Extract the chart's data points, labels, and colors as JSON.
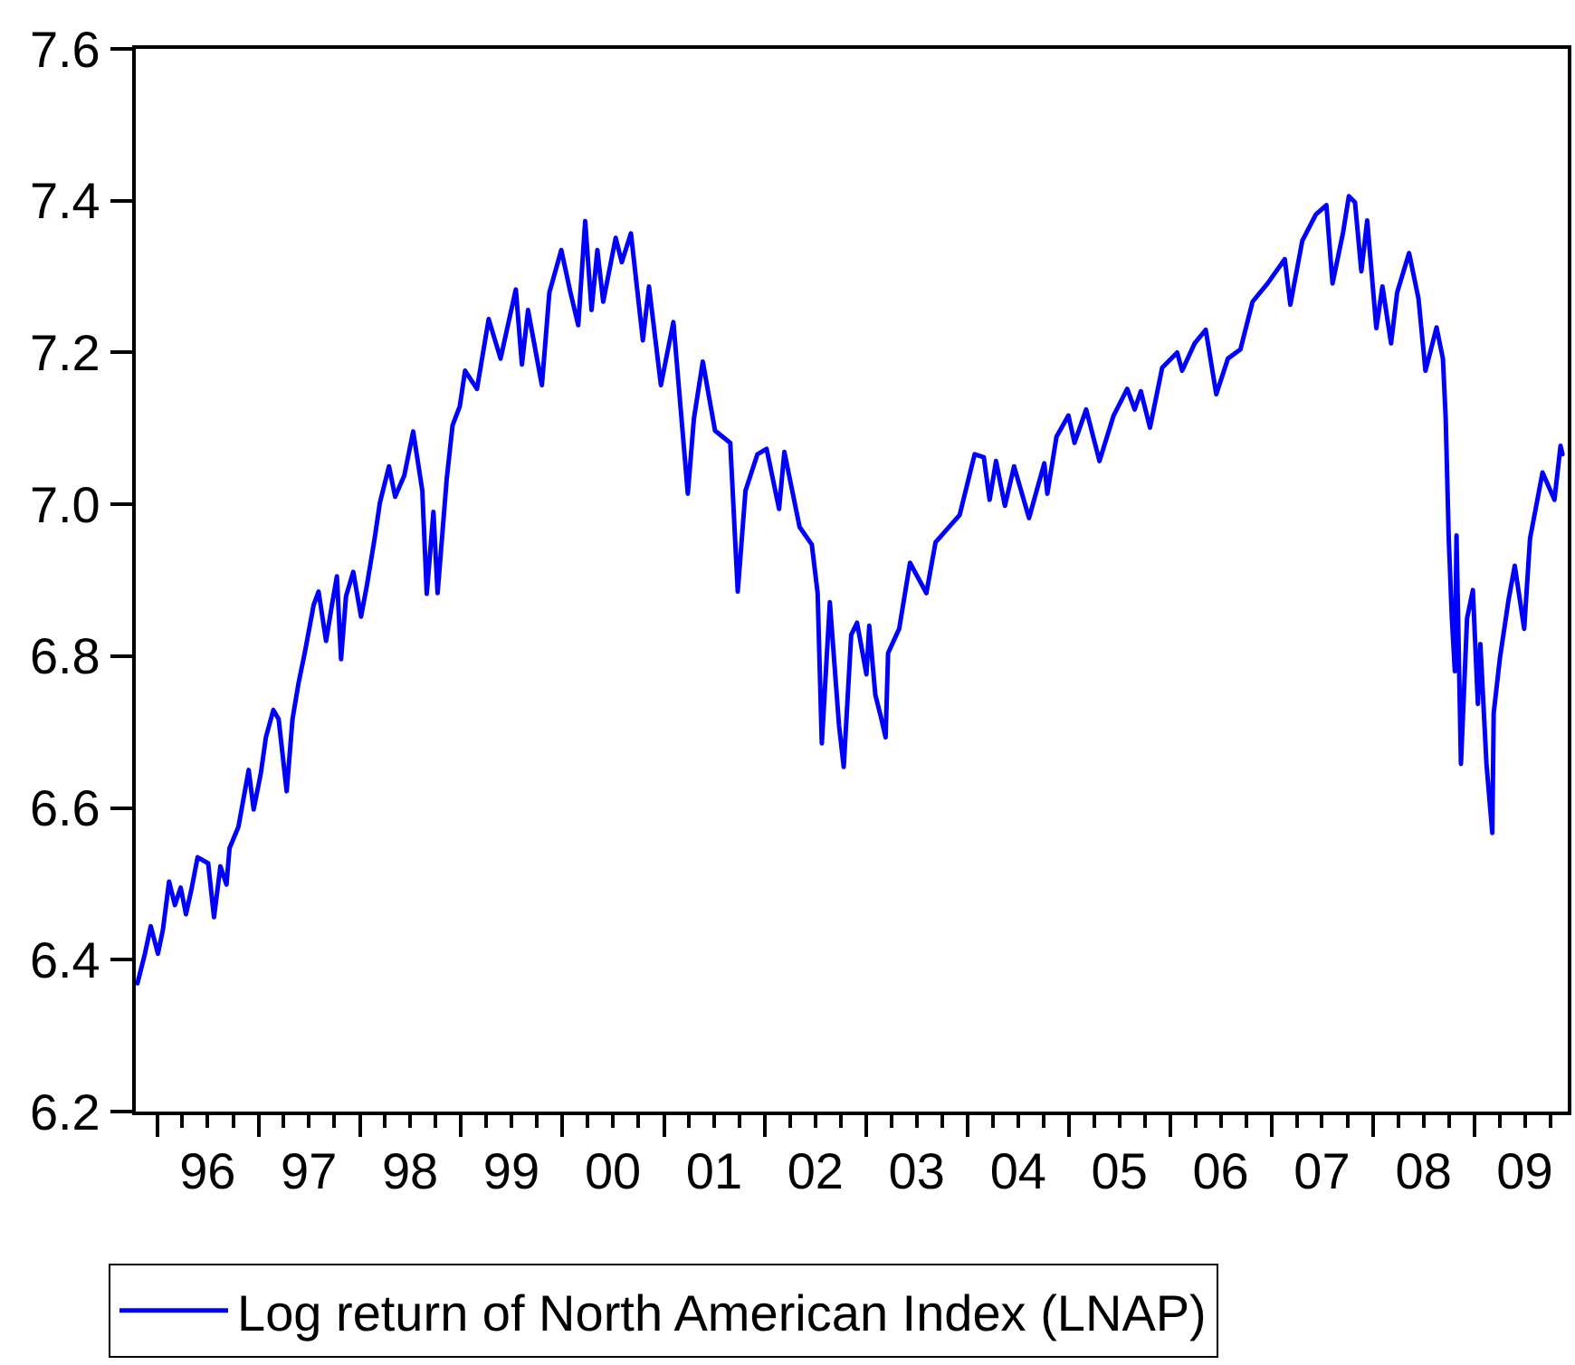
{
  "chart_data": {
    "type": "line",
    "x": [
      "1995-10-22",
      "1995-11-18",
      "1995-12-09",
      "1996-01-04",
      "1996-01-22",
      "1996-02-13",
      "1996-03-05",
      "1996-03-26",
      "1996-04-14",
      "1996-05-05",
      "1996-05-26",
      "1996-07-03",
      "1996-07-24",
      "1996-08-16",
      "1996-09-07",
      "1996-09-18",
      "1996-10-20",
      "1996-11-26",
      "1996-12-14",
      "1997-01-09",
      "1997-01-27",
      "1997-02-23",
      "1997-03-14",
      "1997-04-12",
      "1997-05-03",
      "1997-05-25",
      "1997-06-16",
      "1997-07-18",
      "1997-08-05",
      "1997-09-01",
      "1997-09-22",
      "1997-10-10",
      "1997-10-25",
      "1997-11-12",
      "1997-12-08",
      "1998-01-05",
      "1998-01-27",
      "1998-02-23",
      "1998-03-14",
      "1998-04-16",
      "1998-05-08",
      "1998-06-10",
      "1998-07-12",
      "1998-08-14",
      "1998-08-30",
      "1998-09-23",
      "1998-10-08",
      "1998-11-10",
      "1998-12-01",
      "1998-12-27",
      "1999-01-15",
      "1999-02-27",
      "1999-04-10",
      "1999-05-23",
      "1999-07-17",
      "1999-08-08",
      "1999-08-30",
      "1999-10-19",
      "1999-11-15",
      "1999-12-28",
      "2000-01-30",
      "2000-02-27",
      "2000-03-23",
      "2000-04-15",
      "2000-05-06",
      "2000-05-27",
      "2000-07-11",
      "2000-08-02",
      "2000-09-04",
      "2000-10-17",
      "2000-11-08",
      "2000-12-21",
      "2001-02-04",
      "2001-03-28",
      "2001-04-19",
      "2001-05-21",
      "2001-07-04",
      "2001-08-28",
      "2001-09-24",
      "2001-10-22",
      "2001-12-04",
      "2002-01-06",
      "2002-02-20",
      "2002-03-11",
      "2002-05-05",
      "2002-06-18",
      "2002-07-09",
      "2002-07-24",
      "2002-08-22",
      "2002-09-24",
      "2002-10-11",
      "2002-11-07",
      "2002-11-28",
      "2003-01-01",
      "2003-01-11",
      "2003-02-02",
      "2003-02-24",
      "2003-03-11",
      "2003-03-20",
      "2003-04-29",
      "2003-06-07",
      "2003-08-05",
      "2003-09-07",
      "2003-12-03",
      "2004-01-26",
      "2004-02-28",
      "2004-03-20",
      "2004-04-12",
      "2004-05-14",
      "2004-06-16",
      "2004-08-09",
      "2004-10-03",
      "2004-10-14",
      "2004-11-16",
      "2004-12-29",
      "2005-01-20",
      "2005-03-03",
      "2005-04-20",
      "2005-06-10",
      "2005-07-29",
      "2005-08-25",
      "2005-09-16",
      "2005-10-19",
      "2005-12-02",
      "2006-01-25",
      "2006-02-12",
      "2006-03-29",
      "2006-05-08",
      "2006-06-15",
      "2006-07-27",
      "2006-09-10",
      "2006-10-24",
      "2006-12-17",
      "2007-02-17",
      "2007-03-09",
      "2007-04-21",
      "2007-06-09",
      "2007-07-17",
      "2007-08-08",
      "2007-09-15",
      "2007-10-06",
      "2007-10-28",
      "2007-11-20",
      "2007-12-11",
      "2008-01-13",
      "2008-02-04",
      "2008-03-06",
      "2008-03-28",
      "2008-05-10",
      "2008-06-13",
      "2008-07-08",
      "2008-08-17",
      "2008-09-09",
      "2008-09-19",
      "2008-09-30",
      "2008-10-11",
      "2008-10-22",
      "2008-10-28",
      "2008-11-13",
      "2008-12-05",
      "2008-12-26",
      "2009-01-13",
      "2009-01-22",
      "2009-02-13",
      "2009-03-06",
      "2009-03-11",
      "2009-04-02",
      "2009-05-04",
      "2009-05-26",
      "2009-06-29",
      "2009-07-20",
      "2009-08-01",
      "2009-09-03",
      "2009-10-16",
      "2009-11-07",
      "2009-11-14"
    ],
    "series": [
      {
        "name": "Log return of North American Index (LNAP)",
        "color": "#0000ff",
        "values": [
          6.369,
          6.408,
          6.444,
          6.408,
          6.44,
          6.503,
          6.472,
          6.495,
          6.46,
          6.495,
          6.535,
          6.527,
          6.456,
          6.523,
          6.499,
          6.547,
          6.575,
          6.65,
          6.598,
          6.646,
          6.693,
          6.729,
          6.717,
          6.622,
          6.717,
          6.765,
          6.804,
          6.867,
          6.885,
          6.82,
          6.867,
          6.905,
          6.796,
          6.879,
          6.911,
          6.852,
          6.895,
          6.955,
          7.002,
          7.05,
          7.01,
          7.038,
          7.096,
          7.018,
          6.882,
          6.99,
          6.883,
          7.034,
          7.104,
          7.129,
          7.176,
          7.152,
          7.244,
          7.192,
          7.283,
          7.184,
          7.256,
          7.157,
          7.279,
          7.335,
          7.279,
          7.236,
          7.373,
          7.256,
          7.335,
          7.267,
          7.351,
          7.319,
          7.357,
          7.216,
          7.287,
          7.157,
          7.24,
          7.014,
          7.113,
          7.188,
          7.097,
          7.081,
          6.885,
          7.018,
          7.066,
          7.073,
          6.994,
          7.069,
          6.97,
          6.947,
          6.883,
          6.685,
          6.871,
          6.709,
          6.654,
          6.828,
          6.844,
          6.776,
          6.84,
          6.749,
          6.717,
          6.693,
          6.804,
          6.836,
          6.923,
          6.883,
          6.95,
          6.986,
          7.066,
          7.062,
          7.006,
          7.057,
          6.998,
          7.05,
          6.982,
          7.054,
          7.014,
          7.089,
          7.117,
          7.081,
          7.125,
          7.057,
          7.117,
          7.152,
          7.125,
          7.149,
          7.101,
          7.18,
          7.2,
          7.176,
          7.212,
          7.23,
          7.145,
          7.192,
          7.204,
          7.267,
          7.291,
          7.323,
          7.263,
          7.347,
          7.382,
          7.394,
          7.291,
          7.358,
          7.406,
          7.398,
          7.307,
          7.374,
          7.232,
          7.287,
          7.212,
          7.279,
          7.331,
          7.271,
          7.176,
          7.233,
          7.192,
          7.113,
          6.955,
          6.852,
          6.78,
          6.959,
          6.658,
          6.85,
          6.887,
          6.737,
          6.816,
          6.658,
          6.567,
          6.725,
          6.796,
          6.875,
          6.919,
          6.836,
          6.955,
          6.978,
          7.042,
          7.006,
          7.077,
          7.066
        ]
      }
    ],
    "xlim": [
      "1995-10-16",
      "2009-12-03"
    ],
    "xticks": [
      {
        "value": "1996-01-01",
        "label": null
      },
      {
        "value": "1996-04-01",
        "label": null
      },
      {
        "value": "1996-07-01",
        "label": "96"
      },
      {
        "value": "1996-10-01",
        "label": null
      },
      {
        "value": "1997-01-01",
        "label": null
      },
      {
        "value": "1997-04-01",
        "label": null
      },
      {
        "value": "1997-07-01",
        "label": "97"
      },
      {
        "value": "1997-10-01",
        "label": null
      },
      {
        "value": "1998-01-01",
        "label": null
      },
      {
        "value": "1998-04-01",
        "label": null
      },
      {
        "value": "1998-07-01",
        "label": "98"
      },
      {
        "value": "1998-10-01",
        "label": null
      },
      {
        "value": "1999-01-01",
        "label": null
      },
      {
        "value": "1999-04-01",
        "label": null
      },
      {
        "value": "1999-07-01",
        "label": "99"
      },
      {
        "value": "1999-10-01",
        "label": null
      },
      {
        "value": "2000-01-01",
        "label": null
      },
      {
        "value": "2000-04-01",
        "label": null
      },
      {
        "value": "2000-07-01",
        "label": "00"
      },
      {
        "value": "2000-10-01",
        "label": null
      },
      {
        "value": "2001-01-01",
        "label": null
      },
      {
        "value": "2001-04-01",
        "label": null
      },
      {
        "value": "2001-07-01",
        "label": "01"
      },
      {
        "value": "2001-10-01",
        "label": null
      },
      {
        "value": "2002-01-01",
        "label": null
      },
      {
        "value": "2002-04-01",
        "label": null
      },
      {
        "value": "2002-07-01",
        "label": "02"
      },
      {
        "value": "2002-10-01",
        "label": null
      },
      {
        "value": "2003-01-01",
        "label": null
      },
      {
        "value": "2003-04-01",
        "label": null
      },
      {
        "value": "2003-07-01",
        "label": "03"
      },
      {
        "value": "2003-10-01",
        "label": null
      },
      {
        "value": "2004-01-01",
        "label": null
      },
      {
        "value": "2004-04-01",
        "label": null
      },
      {
        "value": "2004-07-01",
        "label": "04"
      },
      {
        "value": "2004-10-01",
        "label": null
      },
      {
        "value": "2005-01-01",
        "label": null
      },
      {
        "value": "2005-04-01",
        "label": null
      },
      {
        "value": "2005-07-01",
        "label": "05"
      },
      {
        "value": "2005-10-01",
        "label": null
      },
      {
        "value": "2006-01-01",
        "label": null
      },
      {
        "value": "2006-04-01",
        "label": null
      },
      {
        "value": "2006-07-01",
        "label": "06"
      },
      {
        "value": "2006-10-01",
        "label": null
      },
      {
        "value": "2007-01-01",
        "label": null
      },
      {
        "value": "2007-04-01",
        "label": null
      },
      {
        "value": "2007-07-01",
        "label": "07"
      },
      {
        "value": "2007-10-01",
        "label": null
      },
      {
        "value": "2008-01-01",
        "label": null
      },
      {
        "value": "2008-04-01",
        "label": null
      },
      {
        "value": "2008-07-01",
        "label": "08"
      },
      {
        "value": "2008-10-01",
        "label": null
      },
      {
        "value": "2009-01-01",
        "label": null
      },
      {
        "value": "2009-04-01",
        "label": null
      },
      {
        "value": "2009-07-01",
        "label": "09"
      },
      {
        "value": "2009-10-01",
        "label": null
      }
    ],
    "ylim": [
      6.2,
      7.6
    ],
    "yticks": [
      6.2,
      6.4,
      6.6,
      6.8,
      {
        "value": 7,
        "label": "7.0"
      },
      7.2,
      7.4,
      7.6
    ],
    "legend": "bottom"
  }
}
